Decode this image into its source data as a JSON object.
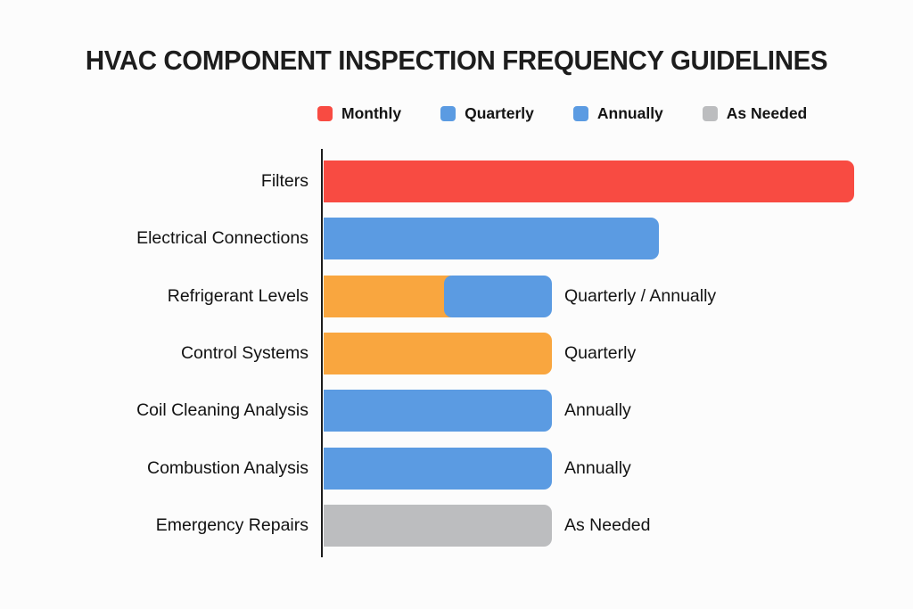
{
  "page": {
    "background": "#fcfcfc"
  },
  "title": "HVAC COMPONENT INSPECTION FREQUENCY GUIDELINES",
  "colors": {
    "red": "#F84B42",
    "blue": "#5B9BE2",
    "orange": "#F9A63F",
    "gray": "#BCBDBF",
    "axis": "#1c1c1c",
    "text": "#141414"
  },
  "legend": {
    "items": [
      {
        "label": "Monthly",
        "color": "#F84B42"
      },
      {
        "label": "Quarterly",
        "color": "#5B9BE2"
      },
      {
        "label": "Annually",
        "color": "#5B9BE2"
      },
      {
        "label": "As Needed",
        "color": "#BCBDBF"
      }
    ]
  },
  "chart_data": {
    "type": "bar",
    "orientation": "horizontal",
    "title": "HVAC COMPONENT INSPECTION FREQUENCY GUIDELINES",
    "xlabel": "",
    "ylabel": "",
    "value_axis_visible": false,
    "grid": false,
    "legend_position": "top",
    "unit": "relative bar length (px on 1024px canvas, no numeric axis shown)",
    "categories": [
      "Filters",
      "Electrical Connections",
      "Refrigerant Levels",
      "Control Systems",
      "Coil Cleaning Analysis",
      "Combustion Analysis",
      "Emergency Repairs"
    ],
    "rows": [
      {
        "category": "Filters",
        "segments": [
          {
            "color_name": "red",
            "color": "#F84B42",
            "length": 595
          }
        ],
        "annotation": ""
      },
      {
        "category": "Electrical Connections",
        "segments": [
          {
            "color_name": "blue",
            "color": "#5B9BE2",
            "length": 376
          }
        ],
        "annotation": ""
      },
      {
        "category": "Refrigerant Levels",
        "segments": [
          {
            "color_name": "orange",
            "color": "#F9A63F",
            "length": 135
          },
          {
            "color_name": "blue",
            "color": "#5B9BE2",
            "length": 121
          }
        ],
        "annotation": "Quarterly / Annually"
      },
      {
        "category": "Control Systems",
        "segments": [
          {
            "color_name": "orange",
            "color": "#F9A63F",
            "length": 256
          }
        ],
        "annotation": "Quarterly"
      },
      {
        "category": "Coil Cleaning Analysis",
        "segments": [
          {
            "color_name": "blue",
            "color": "#5B9BE2",
            "length": 256
          }
        ],
        "annotation": "Annually"
      },
      {
        "category": "Combustion Analysis",
        "segments": [
          {
            "color_name": "blue",
            "color": "#5B9BE2",
            "length": 256
          }
        ],
        "annotation": "Annually"
      },
      {
        "category": "Emergency Repairs",
        "segments": [
          {
            "color_name": "gray",
            "color": "#BCBDBF",
            "length": 256
          }
        ],
        "annotation": "As Needed"
      }
    ]
  }
}
